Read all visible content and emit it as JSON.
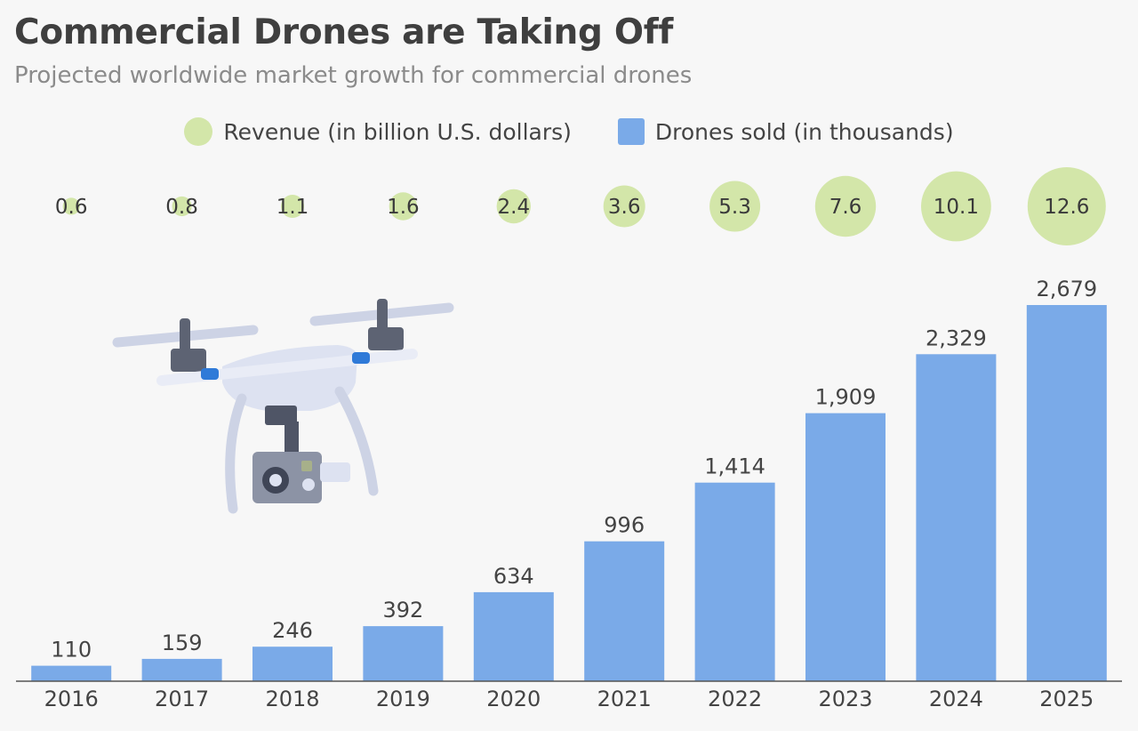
{
  "title": "Commercial Drones are Taking Off",
  "subtitle": "Projected worldwide market growth for commercial drones",
  "legend": {
    "revenue": "Revenue (in billion U.S. dollars)",
    "drones": "Drones sold (in thousands)"
  },
  "colors": {
    "bar": "#7aaae8",
    "bubble": "#d3e6a9",
    "axis": "#555555"
  },
  "chart_data": {
    "type": "bar",
    "title": "Commercial Drones are Taking Off",
    "subtitle": "Projected worldwide market growth for commercial drones",
    "xlabel": "",
    "ylabel": "",
    "categories": [
      "2016",
      "2017",
      "2018",
      "2019",
      "2020",
      "2021",
      "2022",
      "2023",
      "2024",
      "2025"
    ],
    "series": [
      {
        "name": "Drones sold (in thousands)",
        "type": "bar",
        "values": [
          110,
          159,
          246,
          392,
          634,
          996,
          1414,
          1909,
          2329,
          2679
        ],
        "labels": [
          "110",
          "159",
          "246",
          "392",
          "634",
          "996",
          "1,414",
          "1,909",
          "2,329",
          "2,679"
        ]
      },
      {
        "name": "Revenue (in billion U.S. dollars)",
        "type": "bubble",
        "values": [
          0.6,
          0.8,
          1.1,
          1.6,
          2.4,
          3.6,
          5.3,
          7.6,
          10.1,
          12.6
        ],
        "labels": [
          "0.6",
          "0.8",
          "1.1",
          "1.6",
          "2.4",
          "3.6",
          "5.3",
          "7.6",
          "10.1",
          "12.6"
        ]
      }
    ],
    "ylim": [
      0,
      2679
    ],
    "grid": false,
    "legend_position": "top-center"
  }
}
